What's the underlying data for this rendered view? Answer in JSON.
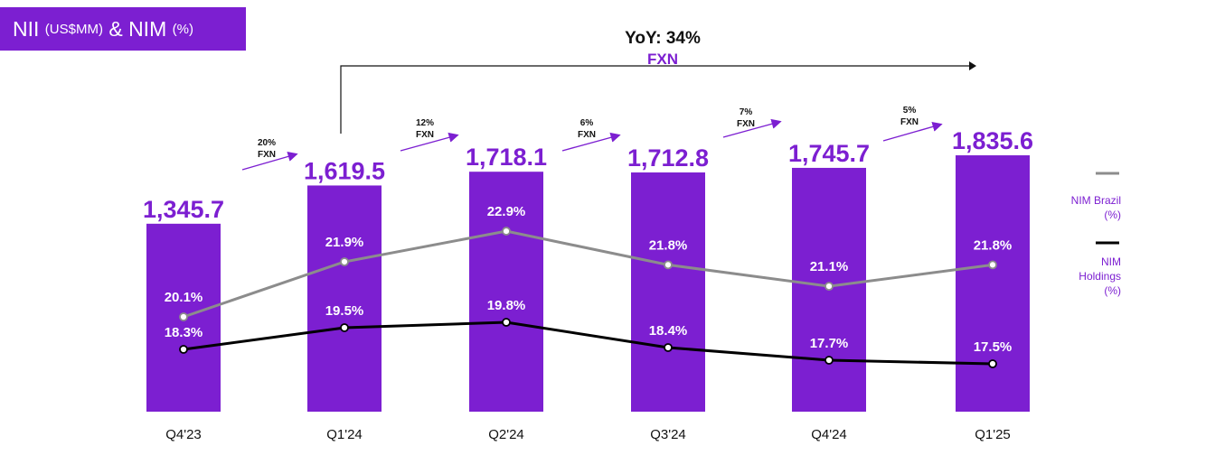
{
  "header": {
    "title_main": "NII",
    "title_unit": "(US$MM)",
    "title_amp": "& NIM",
    "title_pct": "(%)"
  },
  "colors": {
    "bar": "#7c1fd1",
    "nim_brazil_line": "#8c8c8c",
    "nim_holdings_line": "#000000",
    "value_label": "#7c1fd1",
    "panel_bg": "#ffffff"
  },
  "chart_data": {
    "type": "bar",
    "title": "NII (US$MM) & NIM (%)",
    "categories": [
      "Q4'23",
      "Q1'24",
      "Q2'24",
      "Q3'24",
      "Q4'24",
      "Q1'25"
    ],
    "series": [
      {
        "name": "NII (US$MM)",
        "values": [
          1345.7,
          1619.5,
          1718.1,
          1712.8,
          1745.7,
          1835.6
        ],
        "labels": [
          "1,345.7",
          "1,619.5",
          "1,718.1",
          "1,712.8",
          "1,745.7",
          "1,835.6"
        ]
      },
      {
        "name": "NIM Brazil (%)",
        "type": "line",
        "values": [
          20.1,
          21.9,
          22.9,
          21.8,
          21.1,
          21.8
        ],
        "labels": [
          "20.1%",
          "21.9%",
          "22.9%",
          "21.8%",
          "21.1%",
          "21.8%"
        ]
      },
      {
        "name": "NIM Holdings (%)",
        "type": "line",
        "values": [
          18.3,
          19.5,
          19.8,
          18.4,
          17.7,
          17.5
        ],
        "labels": [
          "18.3%",
          "19.5%",
          "19.8%",
          "18.4%",
          "17.7%",
          "17.5%"
        ]
      }
    ],
    "growth_annotations": [
      {
        "pct": "20%",
        "label": "FXN"
      },
      {
        "pct": "12%",
        "label": "FXN"
      },
      {
        "pct": "6%",
        "label": "FXN"
      },
      {
        "pct": "7%",
        "label": "FXN"
      },
      {
        "pct": "5%",
        "label": "FXN"
      }
    ],
    "yoy": {
      "text": "YoY: 34%",
      "label": "FXN"
    },
    "legend": [
      {
        "name": "NIM Brazil",
        "unit": "(%)",
        "color": "#8c8c8c"
      },
      {
        "name": "NIM",
        "name2": "Holdings",
        "unit": "(%)",
        "color": "#000000"
      }
    ],
    "legend_position": "right",
    "grid": false
  }
}
